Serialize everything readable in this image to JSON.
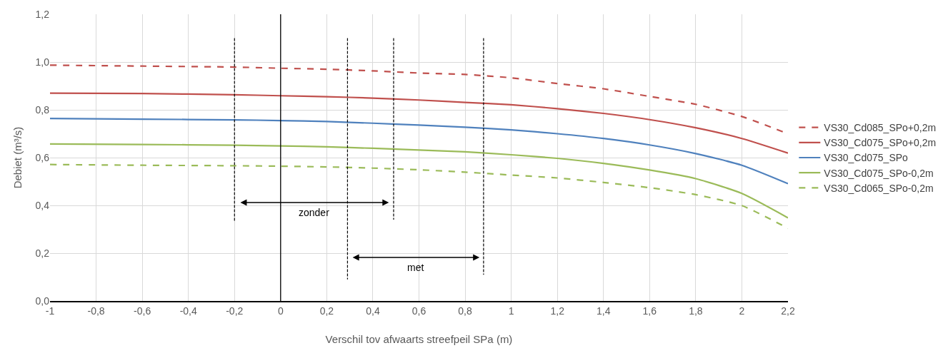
{
  "chart_data": {
    "type": "line",
    "xlabel": "Verschil tov afwaarts streefpeil SPa (m)",
    "ylabel": "Debiet (m³/s)",
    "x": [
      -1,
      -0.6,
      -0.2,
      0,
      0.2,
      0.4,
      0.6,
      0.8,
      1.0,
      1.2,
      1.4,
      1.6,
      1.8,
      2.0,
      2.2
    ],
    "series": [
      {
        "name": "VS30_Cd085_SPo+0,2m",
        "color": "#c0504d",
        "line_style": "dashed",
        "values": [
          0.987,
          0.983,
          0.979,
          0.974,
          0.97,
          0.963,
          0.954,
          0.948,
          0.934,
          0.91,
          0.888,
          0.856,
          0.823,
          0.772,
          0.7
        ]
      },
      {
        "name": "VS30_Cd075_SPo+0,2m",
        "color": "#c0504d",
        "line_style": "solid",
        "values": [
          0.87,
          0.868,
          0.863,
          0.859,
          0.855,
          0.849,
          0.841,
          0.831,
          0.821,
          0.805,
          0.785,
          0.759,
          0.725,
          0.68,
          0.619
        ]
      },
      {
        "name": "VS30_Cd075_SPo",
        "color": "#4f81bd",
        "line_style": "solid",
        "values": [
          0.764,
          0.761,
          0.758,
          0.755,
          0.751,
          0.744,
          0.736,
          0.727,
          0.716,
          0.7,
          0.68,
          0.653,
          0.617,
          0.568,
          0.491
        ]
      },
      {
        "name": "VS30_Cd075_SPo-0,2m",
        "color": "#9bbb59",
        "line_style": "solid",
        "values": [
          0.657,
          0.655,
          0.652,
          0.649,
          0.645,
          0.639,
          0.632,
          0.624,
          0.612,
          0.597,
          0.576,
          0.548,
          0.512,
          0.45,
          0.348
        ]
      },
      {
        "name": "VS30_Cd065_SPo-0,2m",
        "color": "#9bbb59",
        "line_style": "dashed",
        "values": [
          0.571,
          0.568,
          0.566,
          0.564,
          0.561,
          0.556,
          0.549,
          0.539,
          0.527,
          0.515,
          0.496,
          0.474,
          0.445,
          0.399,
          0.304
        ]
      },
      {
        "x": [
          -0.2,
          -0.2
        ],
        "color": "#000000",
        "line_style": "dashed",
        "values": [
          1.1,
          0.33
        ]
      },
      {
        "x": [
          0.49,
          0.49
        ],
        "color": "#000000",
        "line_style": "dashed",
        "values": [
          1.1,
          0.34
        ]
      },
      {
        "x": [
          0.29,
          0.29
        ],
        "color": "#000000",
        "line_style": "dashed",
        "values": [
          1.1,
          0.09
        ]
      },
      {
        "x": [
          0.88,
          0.88
        ],
        "color": "#000000",
        "line_style": "dashed",
        "values": [
          1.1,
          0.11
        ]
      }
    ],
    "annotations": [
      "zonder",
      "met"
    ],
    "ref_lines": [
      {
        "axis": "x",
        "value": 0,
        "color": "#000000"
      }
    ],
    "xlim": [
      -1,
      2.2
    ],
    "xticks": [
      -1,
      {
        "value": -0.8,
        "label": "-0,8"
      },
      {
        "value": -0.6,
        "label": "-0,6"
      },
      {
        "value": -0.4,
        "label": "-0,4"
      },
      {
        "value": -0.2,
        "label": "-0,2"
      },
      0,
      {
        "value": 0.2,
        "label": "0,2"
      },
      {
        "value": 0.4,
        "label": "0,4"
      },
      {
        "value": 0.6,
        "label": "0,6"
      },
      {
        "value": 0.8,
        "label": "0,8"
      },
      1,
      {
        "value": 1.2,
        "label": "1,2"
      },
      {
        "value": 1.4,
        "label": "1,4"
      },
      {
        "value": 1.6,
        "label": "1,6"
      },
      {
        "value": 1.8,
        "label": "1,8"
      },
      2,
      {
        "value": 2.2,
        "label": "2,2"
      }
    ],
    "ylim": [
      0,
      1.2
    ],
    "yticks": [
      {
        "value": 0,
        "label": "0,0"
      },
      {
        "value": 0.2,
        "label": "0,2"
      },
      {
        "value": 0.4,
        "label": "0,4"
      },
      {
        "value": 0.6,
        "label": "0,6"
      },
      {
        "value": 0.8,
        "label": "0,8"
      },
      {
        "value": 1.0,
        "label": "1,0"
      },
      {
        "value": 1.2,
        "label": "1,2"
      }
    ],
    "grid": true,
    "legend": "right",
    "marker": "none"
  }
}
